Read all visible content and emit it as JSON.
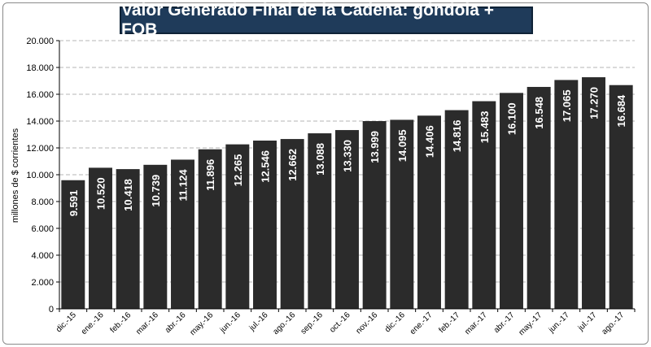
{
  "chart_data": {
    "type": "bar",
    "title": "Valor Generado Final de la Cadena: góndola + FOB",
    "ylabel": "millones de $ corrientes",
    "xlabel": "",
    "ylim": [
      0,
      20000
    ],
    "yticks": [
      0,
      2000,
      4000,
      6000,
      8000,
      10000,
      12000,
      14000,
      16000,
      18000,
      20000
    ],
    "ytick_labels": [
      "0",
      "2.000",
      "4.000",
      "6.000",
      "8.000",
      "10.000",
      "12.000",
      "14.000",
      "16.000",
      "18.000",
      "20.000"
    ],
    "grid": true,
    "legend": "none",
    "bar_color": "#2b2b2b",
    "label_color": "#ffffff",
    "title_bg": "#1f3b5a",
    "categories": [
      "dic.-15",
      "ene.-16",
      "feb.-16",
      "mar.-16",
      "abr.-16",
      "may.-16",
      "jun.-16",
      "jul.-16",
      "ago.-16",
      "sep.-16",
      "oct.-16",
      "nov.-16",
      "dic.-16",
      "ene.-17",
      "feb.-17",
      "mar.-17",
      "abr.-17",
      "may.-17",
      "jun.-17",
      "jul.-17",
      "ago.-17"
    ],
    "values": [
      9591,
      10520,
      10418,
      10739,
      11124,
      11896,
      12265,
      12546,
      12662,
      13088,
      13330,
      13999,
      14095,
      14406,
      14816,
      15483,
      16100,
      16548,
      17065,
      17270,
      16684
    ],
    "value_labels": [
      "9.591",
      "10.520",
      "10.418",
      "10.739",
      "11.124",
      "11.896",
      "12.265",
      "12.546",
      "12.662",
      "13.088",
      "13.330",
      "13.999",
      "14.095",
      "14.406",
      "14.816",
      "15.483",
      "16.100",
      "16.548",
      "17.065",
      "17.270",
      "16.684"
    ]
  }
}
